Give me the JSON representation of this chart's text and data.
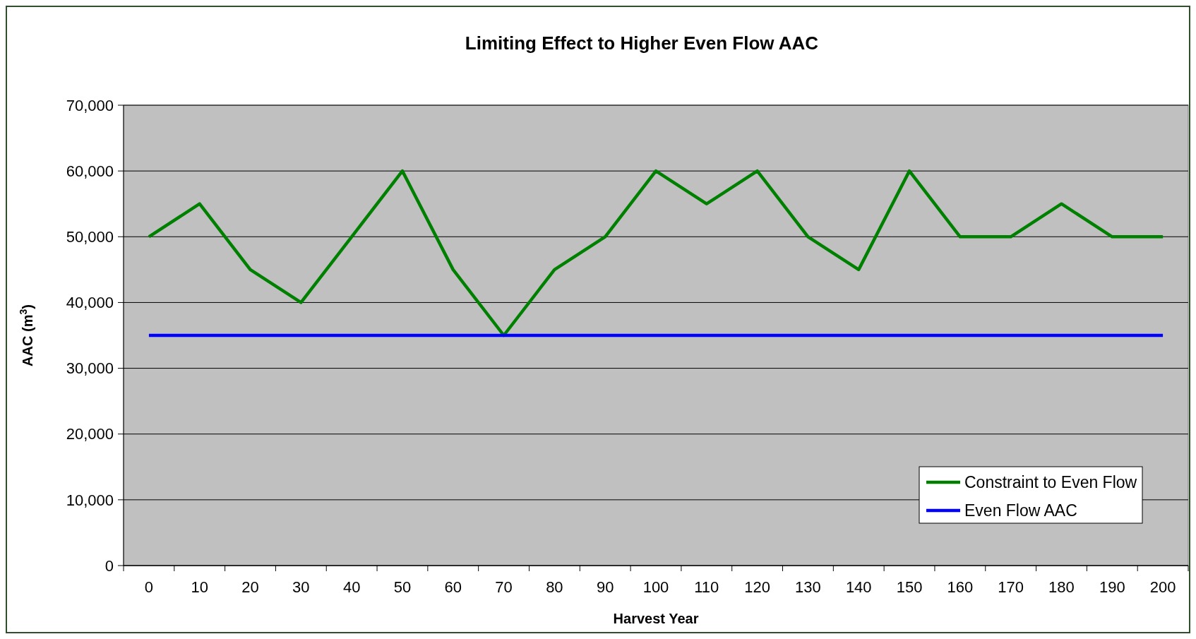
{
  "chart_data": {
    "type": "line",
    "title": "Limiting Effect to Higher Even Flow AAC",
    "xlabel": "Harvest Year",
    "ylabel": "AAC (m$^{3}$)",
    "categories": [
      "0",
      "10",
      "20",
      "30",
      "40",
      "50",
      "60",
      "70",
      "80",
      "90",
      "100",
      "110",
      "120",
      "130",
      "140",
      "150",
      "160",
      "170",
      "180",
      "190",
      "200"
    ],
    "series": [
      {
        "name": "Constraint to Even Flow",
        "color": "#008000",
        "values": [
          50000,
          55000,
          45000,
          40000,
          50000,
          60000,
          45000,
          35000,
          45000,
          50000,
          60000,
          55000,
          60000,
          50000,
          45000,
          60000,
          50000,
          50000,
          55000,
          50000,
          50000
        ]
      },
      {
        "name": "Even Flow AAC",
        "color": "#0000ff",
        "values": [
          35000,
          35000,
          35000,
          35000,
          35000,
          35000,
          35000,
          35000,
          35000,
          35000,
          35000,
          35000,
          35000,
          35000,
          35000,
          35000,
          35000,
          35000,
          35000,
          35000,
          35000
        ]
      }
    ],
    "ylim": [
      0,
      70000
    ],
    "yticks": [
      0,
      {
        "value": 10000,
        "label": "10,000"
      },
      {
        "value": 20000,
        "label": "20,000"
      },
      {
        "value": 30000,
        "label": "30,000"
      },
      {
        "value": 40000,
        "label": "40,000"
      },
      {
        "value": 50000,
        "label": "50,000"
      },
      {
        "value": 60000,
        "label": "60,000"
      },
      {
        "value": 70000,
        "label": "70,000"
      }
    ],
    "grid": "y",
    "legend": "bottom right",
    "marker": "none",
    "line_style": "solid"
  }
}
